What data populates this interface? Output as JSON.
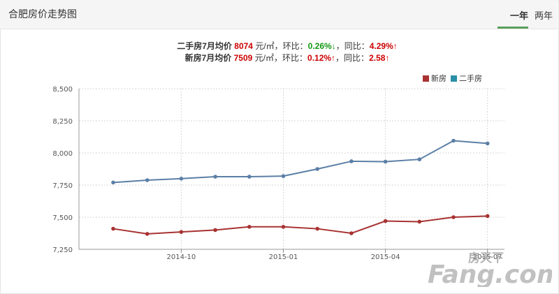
{
  "header": {
    "title": "合肥房价走势图",
    "tabs": [
      "一年",
      "两年"
    ]
  },
  "summary": {
    "resale": {
      "label": "二手房7月均价",
      "price": "8074",
      "unit": "元/㎡",
      "mom_label": "，环比：",
      "mom_value": "0.26%↓",
      "yoy_label": "，同比：",
      "yoy_value": "4.29%↑"
    },
    "new": {
      "label": "新房7月均价",
      "price": "7509",
      "unit": "元/㎡",
      "mom_label": "，环比：",
      "mom_value": "0.12%↑",
      "yoy_label": "，同比：",
      "yoy_value": "2.58↑"
    }
  },
  "colors": {
    "new": "#a83232",
    "resale": "#5b7fa6",
    "resale_legend": "#2a8fa8",
    "up": "#cc0000",
    "down": "#119911"
  },
  "chart_data": {
    "type": "line",
    "x": [
      "2014-08",
      "2014-09",
      "2014-10",
      "2014-11",
      "2014-12",
      "2015-01",
      "2015-02",
      "2015-03",
      "2015-04",
      "2015-05",
      "2015-06",
      "2015-07"
    ],
    "x_tick_labels": [
      "2014-10",
      "2015-01",
      "2015-04",
      "2015-07"
    ],
    "y_ticks": [
      "7,250",
      "7,500",
      "7,750",
      "8,000",
      "8,250",
      "8,500"
    ],
    "ylim": [
      7250,
      8500
    ],
    "grid": true,
    "legend": "top-right",
    "series": [
      {
        "name": "新房",
        "values": [
          7410,
          7370,
          7385,
          7400,
          7425,
          7425,
          7410,
          7375,
          7470,
          7465,
          7500,
          7509
        ]
      },
      {
        "name": "二手房",
        "values": [
          7770,
          7788,
          7800,
          7815,
          7815,
          7820,
          7875,
          7935,
          7932,
          7950,
          8095,
          8074
        ]
      }
    ]
  },
  "watermark": {
    "text": "房天下",
    "brand": "Fang.com"
  }
}
